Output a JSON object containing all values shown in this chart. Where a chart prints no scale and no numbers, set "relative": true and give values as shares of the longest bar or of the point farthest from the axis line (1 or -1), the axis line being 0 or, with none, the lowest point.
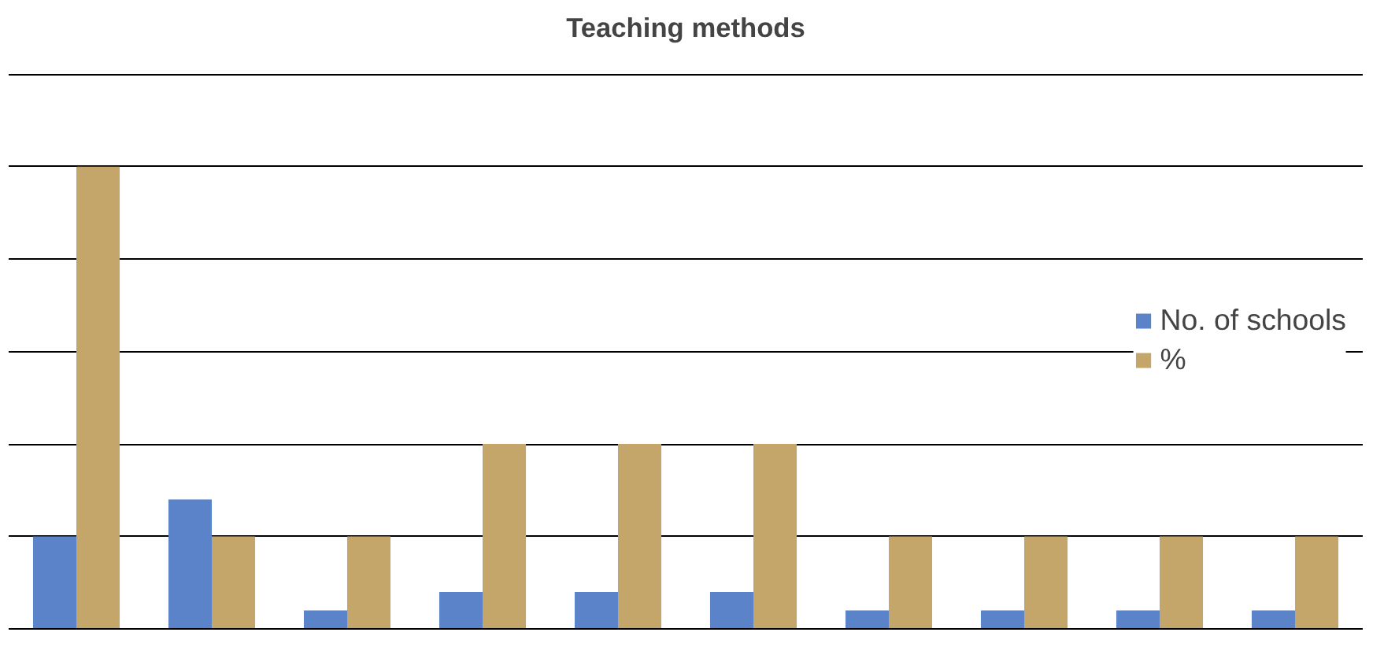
{
  "chart_data": {
    "type": "bar",
    "title": "Teaching methods",
    "relative": true,
    "grid": "y",
    "legend": "right",
    "categories": [
      null,
      null,
      null,
      null,
      null,
      null,
      null,
      null,
      null,
      null
    ],
    "series": [
      {
        "name": "No. of schools",
        "color": "#5b83c9",
        "values": [
          0.2,
          0.28,
          0.04,
          0.08,
          0.08,
          0.08,
          0.04,
          0.04,
          0.04,
          0.04
        ]
      },
      {
        "name": "%",
        "color": "#c4a56a",
        "values": [
          1,
          0.2,
          0.2,
          0.4,
          0.4,
          0.4,
          0.2,
          0.2,
          0.2,
          0.2
        ]
      }
    ]
  }
}
